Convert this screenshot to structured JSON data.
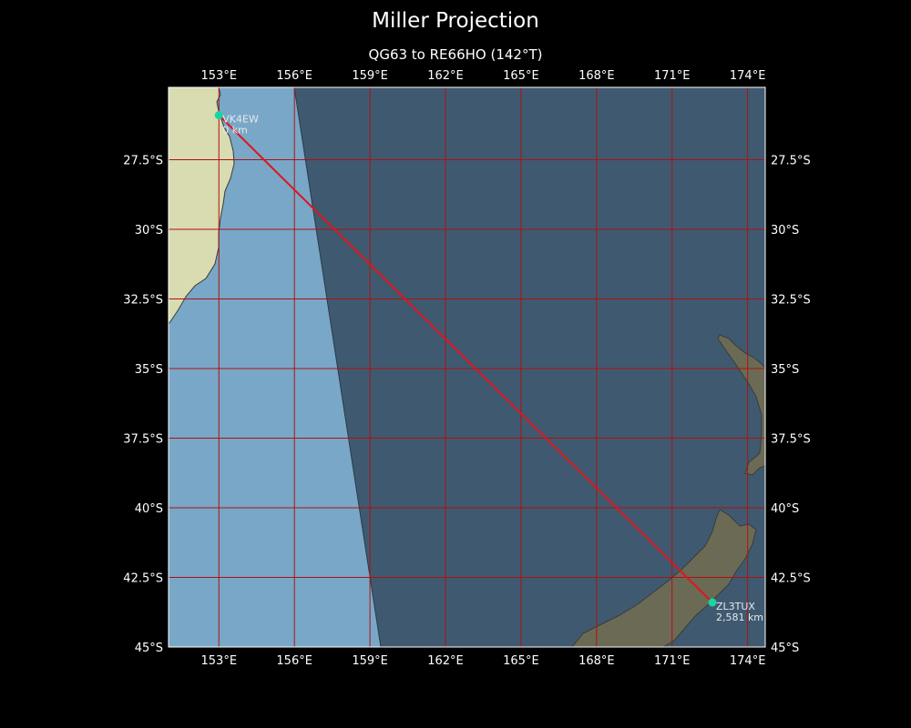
{
  "title": "Miller Projection",
  "subtitle": "QG63 to RE66HO (142°T)",
  "colors": {
    "background": "#000000",
    "land": "#d8dcb0",
    "ocean_day": "#79a7c8",
    "ocean_night": "#3f5a70",
    "path": "#e0141c",
    "grid": "#b01010",
    "marker": "#1ad3a0",
    "coast": "#3a3a3a"
  },
  "map": {
    "lon_range": [
      151,
      174.7
    ],
    "lat_range": [
      -45,
      -24.9
    ],
    "lon_ticks": [
      "153°E",
      "156°E",
      "159°E",
      "162°E",
      "165°E",
      "168°E",
      "171°E",
      "174°E"
    ],
    "lat_ticks": [
      "27.5°S",
      "30°S",
      "32.5°S",
      "35°S",
      "37.5°S",
      "40°S",
      "42.5°S",
      "45°S"
    ],
    "tick_values": {
      "lon": [
        153,
        156,
        159,
        162,
        165,
        168,
        171,
        174
      ],
      "lat": [
        -27.5,
        -30,
        -32.5,
        -35,
        -37.5,
        -40,
        -42.5,
        -45
      ]
    }
  },
  "stations": [
    {
      "call": "VK4EW",
      "distance": "0 km",
      "lon": 153.0,
      "lat": -25.9
    },
    {
      "call": "ZL3TUX",
      "distance": "2,581 km",
      "lon": 172.6,
      "lat": -43.4
    }
  ],
  "path": {
    "bearing_label": "142°T"
  }
}
